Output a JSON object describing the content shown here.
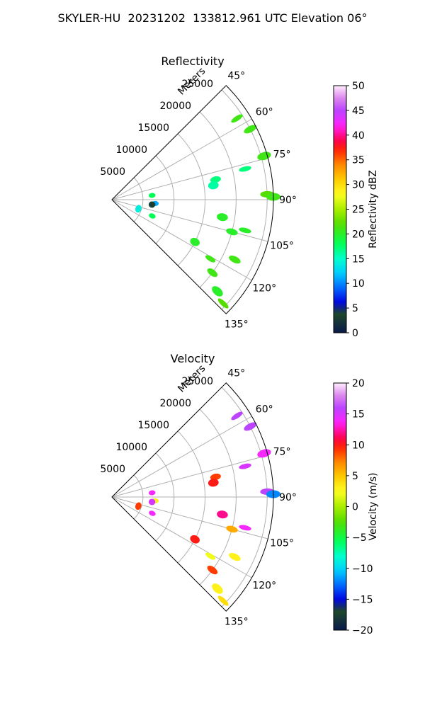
{
  "suptitle": "SKYLER-HU  20231202  133812.961 UTC Elevation 06°",
  "chart_data": [
    {
      "type": "polar-sector",
      "title": "Reflectivity",
      "radial_axis_label": "Meters",
      "radial_ticks": [
        5000,
        10000,
        15000,
        20000,
        25000
      ],
      "radial_tick_labels": [
        "5000",
        "10000",
        "15000",
        "20000",
        "25000"
      ],
      "azimuth_range_deg": [
        45,
        135
      ],
      "azimuth_ticks": [
        45,
        60,
        75,
        90,
        105,
        120,
        135
      ],
      "azimuth_tick_labels": [
        "45°",
        "60°",
        "75°",
        "90°",
        "105°",
        "120°",
        "135°"
      ],
      "range_max_m": 26000,
      "colorbar": {
        "label": "Reflectivity dBZ",
        "limits": [
          0,
          50
        ],
        "ticks": [
          0,
          5,
          10,
          15,
          20,
          25,
          30,
          35,
          40,
          45,
          50
        ],
        "tick_labels": [
          "0",
          "5",
          "10",
          "15",
          "20",
          "25",
          "30",
          "35",
          "40",
          "45",
          "50"
        ]
      },
      "echoes": [
        {
          "az": 57,
          "r": 24000,
          "value": 21
        },
        {
          "az": 63,
          "r": 25000,
          "value": 21
        },
        {
          "az": 74,
          "r": 25500,
          "value": 21
        },
        {
          "az": 77,
          "r": 22000,
          "value": 17
        },
        {
          "az": 79,
          "r": 17000,
          "value": 17
        },
        {
          "az": 82,
          "r": 16500,
          "value": 16
        },
        {
          "az": 84,
          "r": 6500,
          "value": 18
        },
        {
          "az": 88,
          "r": 25000,
          "value": 22
        },
        {
          "az": 89,
          "r": 26000,
          "value": 21
        },
        {
          "az": 95,
          "r": 7000,
          "value": 11
        },
        {
          "az": 97,
          "r": 6500,
          "value": 3
        },
        {
          "az": 99,
          "r": 18000,
          "value": 20
        },
        {
          "az": 103,
          "r": 22000,
          "value": 20
        },
        {
          "az": 105,
          "r": 20000,
          "value": 20
        },
        {
          "az": 109,
          "r": 4500,
          "value": 14
        },
        {
          "az": 112,
          "r": 7000,
          "value": 18
        },
        {
          "az": 116,
          "r": 22000,
          "value": 21
        },
        {
          "az": 117,
          "r": 15000,
          "value": 20
        },
        {
          "az": 121,
          "r": 18500,
          "value": 21
        },
        {
          "az": 126,
          "r": 20000,
          "value": 21
        },
        {
          "az": 131,
          "r": 22500,
          "value": 20
        },
        {
          "az": 133,
          "r": 24500,
          "value": 22
        }
      ]
    },
    {
      "type": "polar-sector",
      "title": "Velocity",
      "radial_axis_label": "Meters",
      "radial_ticks": [
        5000,
        10000,
        15000,
        20000,
        25000
      ],
      "radial_tick_labels": [
        "5000",
        "10000",
        "15000",
        "20000",
        "25000"
      ],
      "azimuth_range_deg": [
        45,
        135
      ],
      "azimuth_ticks": [
        45,
        60,
        75,
        90,
        105,
        120,
        135
      ],
      "azimuth_tick_labels": [
        "45°",
        "60°",
        "75°",
        "90°",
        "105°",
        "120°",
        "135°"
      ],
      "range_max_m": 26000,
      "colorbar": {
        "label": "Velocity (m/s)",
        "limits": [
          -20,
          20
        ],
        "ticks": [
          -20,
          -15,
          -10,
          -5,
          0,
          5,
          10,
          15,
          20
        ],
        "tick_labels": [
          "−20",
          "−15",
          "−10",
          "−5",
          "0",
          "5",
          "10",
          "15",
          "20"
        ]
      },
      "echoes": [
        {
          "az": 57,
          "r": 24000,
          "value": 16
        },
        {
          "az": 63,
          "r": 25000,
          "value": 16
        },
        {
          "az": 74,
          "r": 25500,
          "value": 14
        },
        {
          "az": 77,
          "r": 22000,
          "value": 15
        },
        {
          "az": 79,
          "r": 17000,
          "value": 9
        },
        {
          "az": 82,
          "r": 16500,
          "value": 10
        },
        {
          "az": 84,
          "r": 6500,
          "value": 14
        },
        {
          "az": 88,
          "r": 25000,
          "value": 16
        },
        {
          "az": 89,
          "r": 26000,
          "value": -12
        },
        {
          "az": 95,
          "r": 7000,
          "value": 3
        },
        {
          "az": 97,
          "r": 6500,
          "value": 15
        },
        {
          "az": 99,
          "r": 18000,
          "value": 12
        },
        {
          "az": 103,
          "r": 22000,
          "value": 14
        },
        {
          "az": 105,
          "r": 20000,
          "value": 6
        },
        {
          "az": 109,
          "r": 4500,
          "value": 9
        },
        {
          "az": 112,
          "r": 7000,
          "value": 14
        },
        {
          "az": 116,
          "r": 22000,
          "value": 3
        },
        {
          "az": 117,
          "r": 15000,
          "value": 10
        },
        {
          "az": 121,
          "r": 18500,
          "value": 2
        },
        {
          "az": 126,
          "r": 20000,
          "value": 9
        },
        {
          "az": 131,
          "r": 22500,
          "value": 3
        },
        {
          "az": 133,
          "r": 24500,
          "value": 4
        }
      ]
    }
  ]
}
